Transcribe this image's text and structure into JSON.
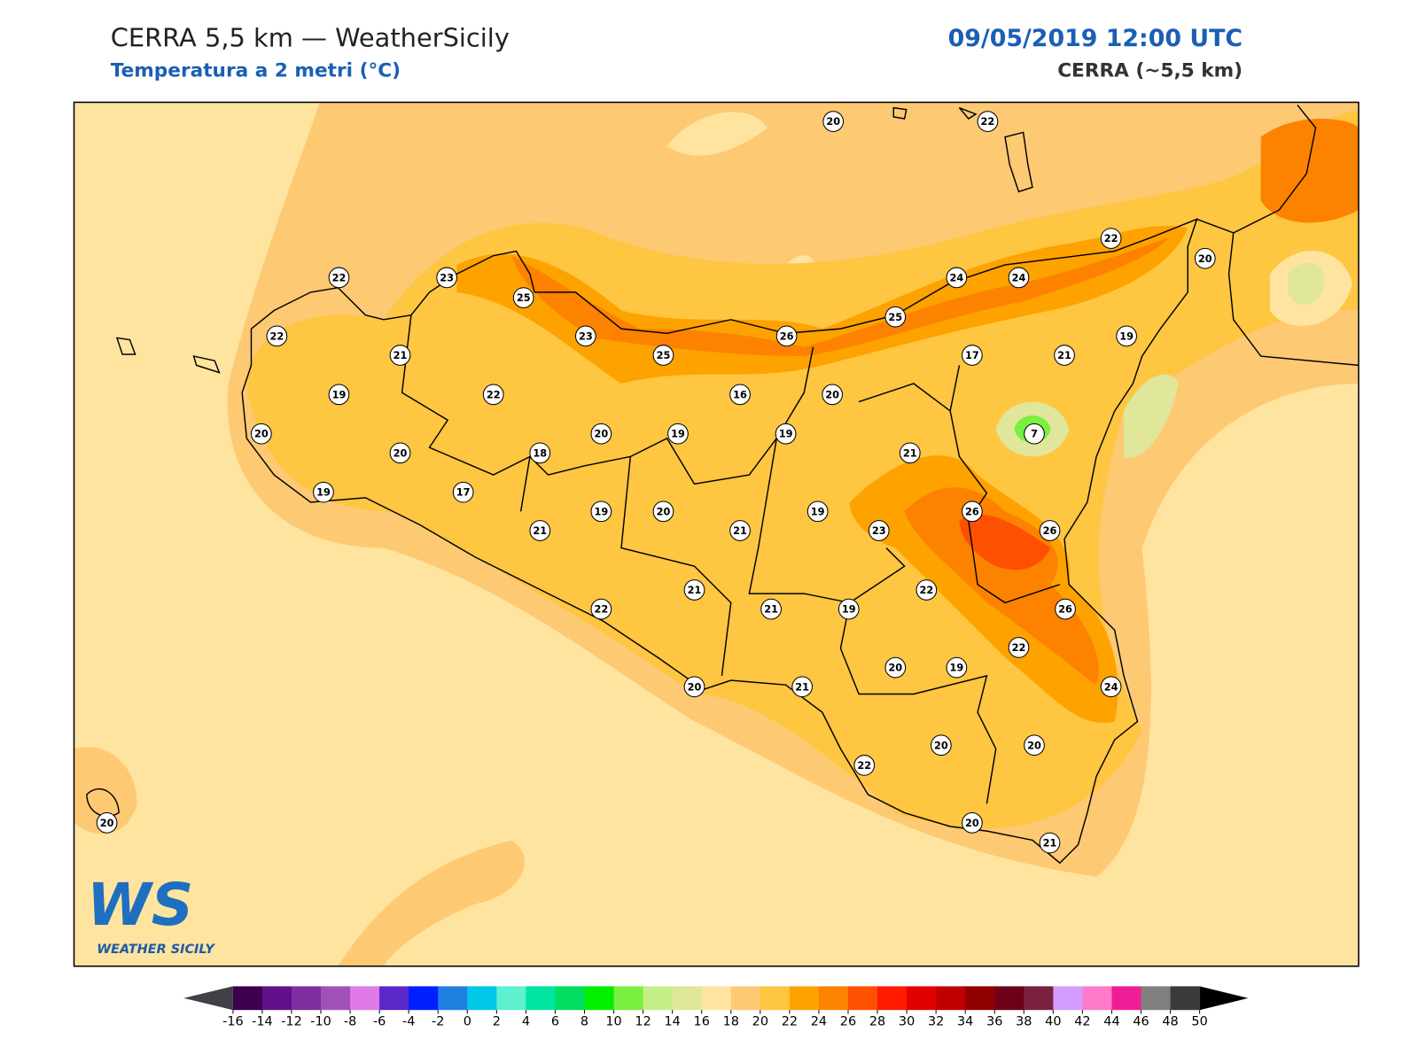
{
  "header": {
    "title": "CERRA 5,5 km — WeatherSicily",
    "subtitle": "Temperatura a 2 metri (°C)",
    "datetime": "09/05/2019 12:00 UTC",
    "model": "CERRA (~5,5 km)"
  },
  "stations": [
    20,
    22,
    22,
    20,
    22,
    23,
    25,
    24,
    24,
    25,
    22,
    23,
    26,
    19,
    21,
    25,
    17,
    21,
    19,
    22,
    16,
    20,
    20,
    20,
    19,
    19,
    7,
    20,
    18,
    21,
    19,
    17,
    19,
    20,
    19,
    26,
    21,
    21,
    23,
    26,
    21,
    22,
    22,
    21,
    19,
    26,
    22,
    20,
    19,
    20,
    21,
    24,
    20,
    20,
    22,
    20,
    20,
    21
  ],
  "colorbar": {
    "ticks": [
      -16,
      -14,
      -12,
      -10,
      -8,
      -6,
      -4,
      -2,
      0,
      2,
      4,
      6,
      8,
      10,
      12,
      14,
      16,
      18,
      20,
      22,
      24,
      26,
      28,
      30,
      32,
      34,
      36,
      38,
      40,
      42,
      44,
      46,
      48,
      50
    ],
    "colors": [
      "#3c004f",
      "#62108a",
      "#7e2fa0",
      "#a052b8",
      "#e07ae8",
      "#5a27c8",
      "#0020ff",
      "#1f7fe0",
      "#00c8e8",
      "#5ef0d0",
      "#00e6a0",
      "#00dd60",
      "#00f000",
      "#7af040",
      "#c4ee88",
      "#e0e69a",
      "#ffe4a0",
      "#fec973",
      "#fec641",
      "#fea200",
      "#fd8200",
      "#fd5000",
      "#ff1a00",
      "#e00000",
      "#c00000",
      "#900000",
      "#6e0018",
      "#7a2040",
      "#d49cff",
      "#ff7ac8",
      "#f01e96",
      "#808080",
      "#3a3a3a"
    ],
    "under": "#404048",
    "over": "#000000"
  },
  "logo": {
    "mark": "WS",
    "name": "WEATHER SICILY"
  }
}
